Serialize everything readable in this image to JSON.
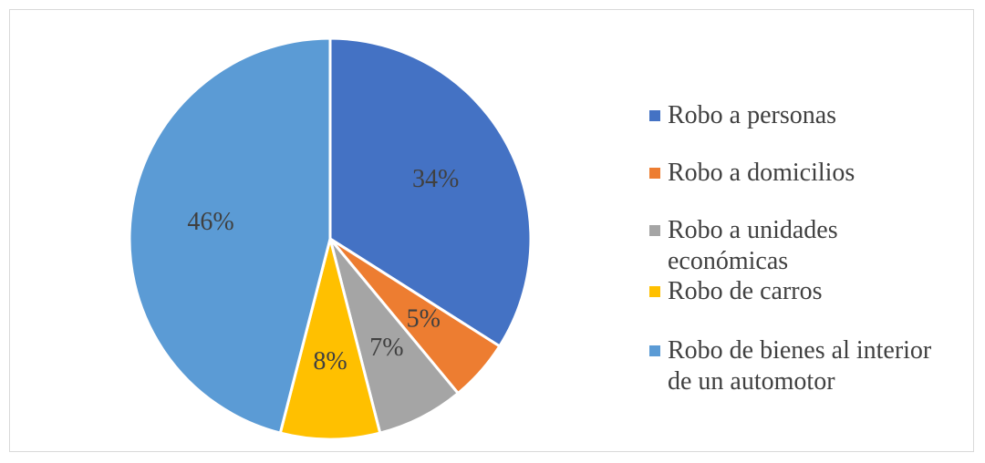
{
  "chart_data": {
    "type": "pie",
    "categories": [
      "Robo a personas",
      "Robo a domicilios",
      "Robo a unidades económicas",
      "Robo de carros",
      "Robo de bienes al interior de un automotor"
    ],
    "values": [
      34,
      5,
      7,
      8,
      46
    ],
    "value_labels": [
      "34%",
      "5%",
      "7%",
      "8%",
      "46%"
    ],
    "colors": [
      "#4472c4",
      "#ed7d31",
      "#a5a5a5",
      "#ffc000",
      "#5b9bd5"
    ],
    "legend": "right"
  }
}
